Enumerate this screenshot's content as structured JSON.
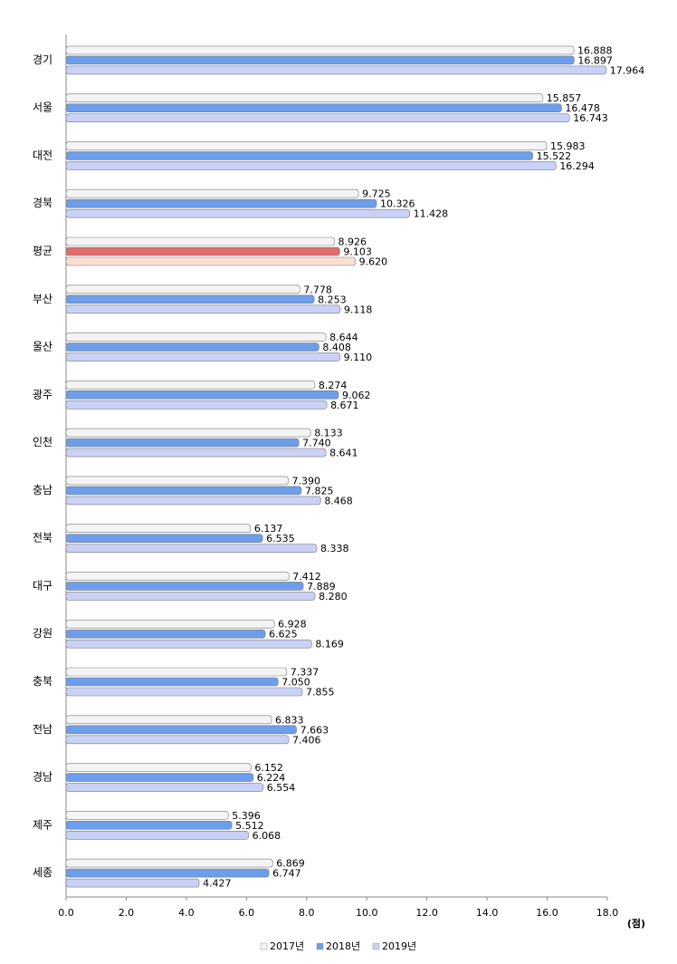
{
  "chart_data": {
    "type": "hbar",
    "categories": [
      "경기",
      "서울",
      "대전",
      "경북",
      "평균",
      "부산",
      "울산",
      "광주",
      "인천",
      "충남",
      "전북",
      "대구",
      "강원",
      "충북",
      "전남",
      "경남",
      "제주",
      "세종"
    ],
    "series": [
      {
        "name": "2017년",
        "color": "#f4f4f4",
        "values": [
          16.888,
          15.857,
          15.983,
          9.725,
          8.926,
          7.778,
          8.644,
          8.274,
          8.133,
          7.39,
          6.137,
          7.412,
          6.928,
          7.337,
          6.833,
          6.152,
          5.396,
          6.869
        ],
        "value_labels": [
          "16.888",
          "15.857",
          "15.983",
          "9.725",
          "8.926",
          "7.778",
          "8.644",
          "8.274",
          "8.133",
          "7.390",
          "6.137",
          "7.412",
          "6.928",
          "7.337",
          "6.833",
          "6.152",
          "5.396",
          "6.869"
        ]
      },
      {
        "name": "2018년",
        "color": "#6d9eeb",
        "colors": [
          "#6d9eeb",
          "#6d9eeb",
          "#6d9eeb",
          "#6d9eeb",
          "#e06c6c",
          "#6d9eeb",
          "#6d9eeb",
          "#6d9eeb",
          "#6d9eeb",
          "#6d9eeb",
          "#6d9eeb",
          "#6d9eeb",
          "#6d9eeb",
          "#6d9eeb",
          "#6d9eeb",
          "#6d9eeb",
          "#6d9eeb",
          "#6d9eeb"
        ],
        "values": [
          16.897,
          16.478,
          15.522,
          10.326,
          9.103,
          8.253,
          8.408,
          9.062,
          7.74,
          7.825,
          6.535,
          7.889,
          6.625,
          7.05,
          7.663,
          6.224,
          5.512,
          6.747
        ],
        "value_labels": [
          "16.897",
          "16.478",
          "15.522",
          "10.326",
          "9.103",
          "8.253",
          "8.408",
          "9.062",
          "7.740",
          "7.825",
          "6.535",
          "7.889",
          "6.625",
          "7.050",
          "7.663",
          "6.224",
          "5.512",
          "6.747"
        ]
      },
      {
        "name": "2019년",
        "color": "#c9d1f7",
        "colors": [
          "#c9d1f7",
          "#c9d1f7",
          "#c9d1f7",
          "#c9d1f7",
          "#fbe0d2",
          "#c9d1f7",
          "#c9d1f7",
          "#c9d1f7",
          "#c9d1f7",
          "#c9d1f7",
          "#c9d1f7",
          "#c9d1f7",
          "#c9d1f7",
          "#c9d1f7",
          "#c9d1f7",
          "#c9d1f7",
          "#c9d1f7",
          "#c9d1f7"
        ],
        "values": [
          17.964,
          16.743,
          16.294,
          11.428,
          9.62,
          9.118,
          9.11,
          8.671,
          8.641,
          8.468,
          8.338,
          8.28,
          8.169,
          7.855,
          7.406,
          6.554,
          6.068,
          4.427
        ],
        "value_labels": [
          "17.964",
          "16.743",
          "16.294",
          "11.428",
          "9.620",
          "9.118",
          "9.110",
          "8.671",
          "8.641",
          "8.468",
          "8.338",
          "8.280",
          "8.169",
          "7.855",
          "7.406",
          "6.554",
          "6.068",
          "4.427"
        ]
      }
    ],
    "x_label": "(점)",
    "xlim": [
      0,
      18
    ],
    "xticks": [
      {
        "value": 0,
        "label": "0.0"
      },
      {
        "value": 2,
        "label": "2.0"
      },
      {
        "value": 4,
        "label": "4.0"
      },
      {
        "value": 6,
        "label": "6.0"
      },
      {
        "value": 8,
        "label": "8.0"
      },
      {
        "value": 10,
        "label": "10.0"
      },
      {
        "value": 12,
        "label": "12.0"
      },
      {
        "value": 14,
        "label": "14.0"
      },
      {
        "value": 16,
        "label": "16.0"
      },
      {
        "value": 18,
        "label": "18.0"
      }
    ],
    "legend": "bottom"
  }
}
